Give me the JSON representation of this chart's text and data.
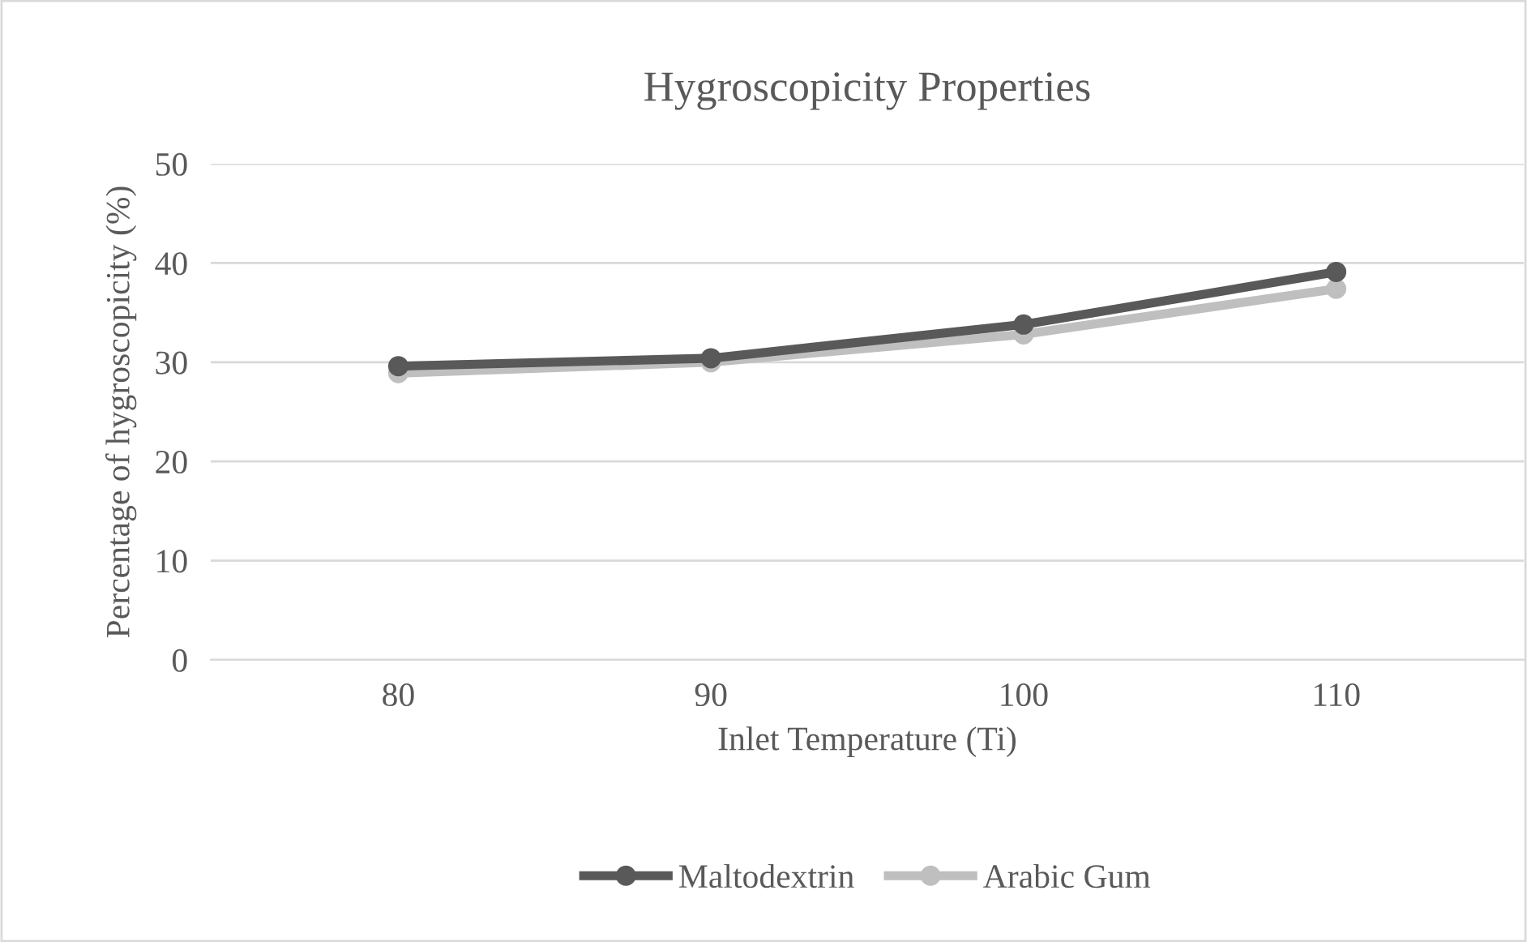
{
  "chart_data": {
    "type": "line",
    "title": "Hygroscopicity Properties",
    "xlabel": "Inlet Temperature (Ti)",
    "ylabel": "Percentage of hygroscopicity (%)",
    "categories": [
      "80",
      "90",
      "100",
      "110"
    ],
    "series": [
      {
        "name": "Maltodextrin",
        "color": "#595959",
        "values": [
          29.6,
          30.4,
          33.8,
          39.1
        ]
      },
      {
        "name": "Arabic Gum",
        "color": "#bfbfbf",
        "values": [
          28.9,
          30.0,
          32.8,
          37.4
        ]
      }
    ],
    "ylim": [
      0,
      50
    ],
    "yticks": [
      0,
      10,
      20,
      30,
      40,
      50
    ],
    "grid": "y",
    "legend": "bottom",
    "marker": "circle",
    "line_style": "solid"
  }
}
